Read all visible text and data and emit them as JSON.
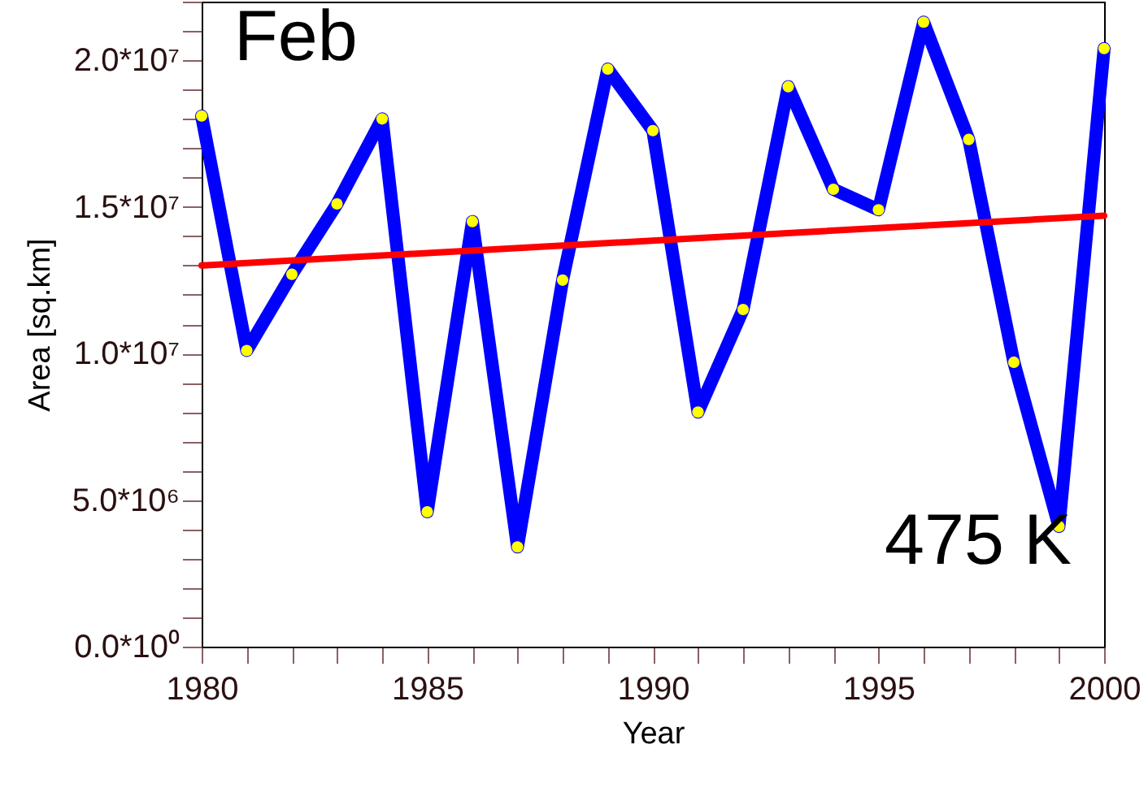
{
  "chart_data": {
    "type": "line",
    "xlabel": "Year",
    "ylabel": "Area [sq.km]",
    "annotations": [
      "Feb",
      "475 K"
    ],
    "x": [
      1980,
      1981,
      1982,
      1983,
      1984,
      1985,
      1986,
      1987,
      1988,
      1989,
      1990,
      1991,
      1992,
      1993,
      1994,
      1995,
      1996,
      1997,
      1998,
      1999,
      2000
    ],
    "series": [
      {
        "color": "#0000ff",
        "marker": "circle",
        "values": [
          18100000,
          10100000,
          12700000,
          15100000,
          18000000,
          4600000,
          14500000,
          3400000,
          12500000,
          19700000,
          17600000,
          8000000,
          11500000,
          19100000,
          15600000,
          14900000,
          21300000,
          17300000,
          9700000,
          4100000,
          20400000
        ]
      },
      {
        "type": "line",
        "color": "#ff0000",
        "x": [
          1980,
          2000
        ],
        "values": [
          13000000,
          14700000
        ]
      }
    ],
    "xlim": [
      1980,
      2000
    ],
    "xticks": [
      1980,
      {
        "value": 1981,
        "label": null
      },
      {
        "value": 1982,
        "label": null
      },
      {
        "value": 1983,
        "label": null
      },
      {
        "value": 1984,
        "label": null
      },
      1985,
      {
        "value": 1986,
        "label": null
      },
      {
        "value": 1987,
        "label": null
      },
      {
        "value": 1988,
        "label": null
      },
      {
        "value": 1989,
        "label": null
      },
      1990,
      {
        "value": 1991,
        "label": null
      },
      {
        "value": 1992,
        "label": null
      },
      {
        "value": 1993,
        "label": null
      },
      {
        "value": 1994,
        "label": null
      },
      1995,
      {
        "value": 1996,
        "label": null
      },
      {
        "value": 1997,
        "label": null
      },
      {
        "value": 1998,
        "label": null
      },
      {
        "value": 1999,
        "label": null
      },
      2000
    ],
    "ylim": [
      0,
      22000000
    ],
    "yticks": [
      {
        "value": 0,
        "label": "0.0*10⁰"
      },
      {
        "value": 1000000,
        "label": null
      },
      {
        "value": 2000000,
        "label": null
      },
      {
        "value": 3000000,
        "label": null
      },
      {
        "value": 4000000,
        "label": null
      },
      {
        "value": 5000000,
        "label": "5.0*10⁶"
      },
      {
        "value": 6000000,
        "label": null
      },
      {
        "value": 7000000,
        "label": null
      },
      {
        "value": 8000000,
        "label": null
      },
      {
        "value": 9000000,
        "label": null
      },
      {
        "value": 10000000,
        "label": "1.0*10⁷"
      },
      {
        "value": 11000000,
        "label": null
      },
      {
        "value": 12000000,
        "label": null
      },
      {
        "value": 13000000,
        "label": null
      },
      {
        "value": 14000000,
        "label": null
      },
      {
        "value": 15000000,
        "label": "1.5*10⁷"
      },
      {
        "value": 16000000,
        "label": null
      },
      {
        "value": 17000000,
        "label": null
      },
      {
        "value": 18000000,
        "label": null
      },
      {
        "value": 19000000,
        "label": null
      },
      {
        "value": 20000000,
        "label": "2.0*10⁷"
      },
      {
        "value": 21000000,
        "label": null
      },
      {
        "value": 22000000,
        "label": null
      }
    ],
    "grid": false
  }
}
